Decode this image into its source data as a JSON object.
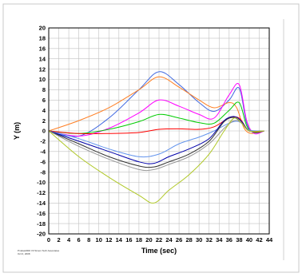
{
  "chart_data": {
    "type": "line",
    "title": "",
    "xlabel": "Time (sec)",
    "ylabel": "Y (m)",
    "xlim": [
      0,
      44
    ],
    "ylim": [
      -20,
      20
    ],
    "xticks": [
      0,
      2,
      4,
      6,
      8,
      10,
      12,
      14,
      16,
      18,
      20,
      22,
      24,
      26,
      28,
      30,
      32,
      34,
      36,
      38,
      40,
      42,
      44
    ],
    "yticks": [
      20,
      18,
      16,
      14,
      12,
      10,
      8,
      6,
      4,
      2,
      0,
      -2,
      -4,
      -6,
      -8,
      -10,
      -12,
      -14,
      -16,
      -18,
      -20
    ],
    "grid": true,
    "credit_lines": [
      "Pmdas2000 V3 Simon Tech Associates",
      "Oct 0, 2008"
    ],
    "series": [
      {
        "color": "#4169e1",
        "x": [
          0,
          6,
          12,
          18,
          22,
          26,
          30,
          33,
          36,
          38,
          39.5,
          41,
          43
        ],
        "y": [
          0,
          -1,
          2.5,
          8,
          11.5,
          9,
          5.5,
          3.8,
          6,
          8.3,
          1.5,
          -0.3,
          0
        ]
      },
      {
        "color": "#ff7f24",
        "x": [
          0,
          6,
          12,
          18,
          22,
          26,
          30,
          33,
          36,
          37.5,
          39,
          40.5,
          42
        ],
        "y": [
          0,
          2,
          4.5,
          8,
          10.5,
          8.5,
          6,
          4.5,
          5.5,
          4.5,
          0.5,
          -0.5,
          0
        ]
      },
      {
        "color": "#ff00ff",
        "x": [
          0,
          6,
          12,
          18,
          22,
          26,
          30,
          33,
          36,
          38,
          39.5,
          41,
          43
        ],
        "y": [
          0,
          -1,
          0.5,
          3.5,
          6,
          4.8,
          3.2,
          2.5,
          7,
          9,
          2,
          -0.5,
          0
        ]
      },
      {
        "color": "#00cc00",
        "x": [
          0,
          6,
          12,
          18,
          22,
          26,
          30,
          33,
          36,
          38,
          39.5,
          41,
          43
        ],
        "y": [
          0,
          -0.5,
          0.3,
          1.8,
          3.2,
          2.5,
          1.6,
          1.5,
          4,
          5.5,
          1,
          -0.3,
          0
        ]
      },
      {
        "color": "#ff0000",
        "x": [
          0,
          6,
          12,
          18,
          22,
          26,
          30,
          33,
          36,
          38,
          39.5,
          41,
          43
        ],
        "y": [
          0,
          -0.5,
          -0.5,
          -0.3,
          0.3,
          0.4,
          0.3,
          0.8,
          2.5,
          2.5,
          0.5,
          -0.2,
          0
        ]
      },
      {
        "color": "#6495ed",
        "x": [
          0,
          6,
          12,
          18,
          22,
          26,
          30,
          33,
          36,
          38,
          40,
          43
        ],
        "y": [
          0,
          -1.5,
          -3.5,
          -5,
          -4.5,
          -2.5,
          -1.2,
          0,
          1.5,
          1.8,
          0.2,
          0
        ]
      },
      {
        "color": "#0000aa",
        "x": [
          0,
          6,
          12,
          18,
          21,
          24,
          28,
          32,
          35,
          37,
          38.5,
          40,
          43
        ],
        "y": [
          0,
          -2,
          -4,
          -6,
          -6.3,
          -5,
          -3.5,
          -1.5,
          2,
          2.8,
          1.8,
          0,
          0
        ]
      },
      {
        "color": "#333333",
        "x": [
          0,
          6,
          12,
          18,
          21,
          24,
          28,
          32,
          35,
          37,
          38.5,
          40,
          43
        ],
        "y": [
          0,
          -2.5,
          -5,
          -6.8,
          -7,
          -6,
          -4.5,
          -2,
          1.8,
          2.6,
          1.5,
          0,
          0
        ]
      },
      {
        "color": "#999999",
        "x": [
          0,
          6,
          12,
          18,
          21,
          24,
          28,
          32,
          35,
          37,
          38.5,
          40,
          43
        ],
        "y": [
          0,
          -3,
          -5.5,
          -7.5,
          -7.5,
          -6.5,
          -5,
          -2.5,
          0.5,
          2,
          1.5,
          0,
          0
        ]
      },
      {
        "color": "#b0c828",
        "x": [
          0,
          6,
          12,
          18,
          21,
          24,
          28,
          32,
          35,
          37,
          38.5,
          40,
          43
        ],
        "y": [
          0,
          -5,
          -9,
          -12.5,
          -14,
          -11.5,
          -8.5,
          -4.5,
          0,
          2.5,
          1.5,
          0,
          0
        ]
      }
    ]
  }
}
